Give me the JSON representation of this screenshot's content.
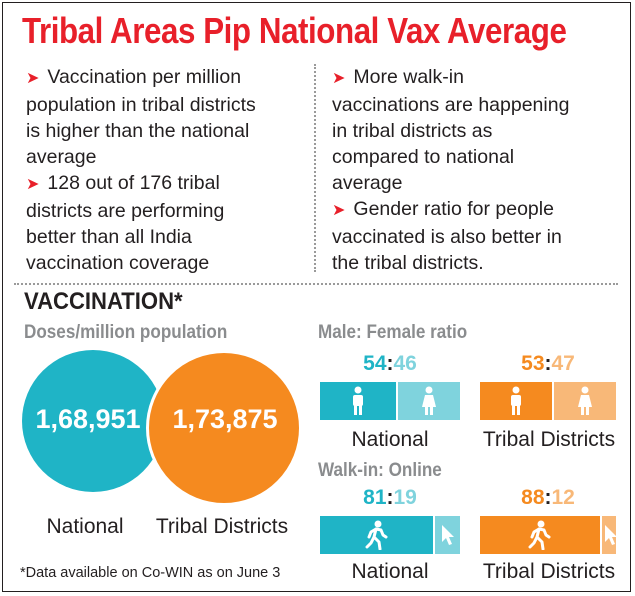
{
  "title": "Tribal Areas Pip National Vax Average",
  "left_bullets": [
    {
      "lines": [
        "Vaccination per million",
        "population in tribal districts",
        "is higher than the national",
        "average"
      ]
    },
    {
      "lines": [
        "128 out of 176 tribal",
        "districts are performing",
        "better than all India",
        "vaccination coverage"
      ]
    }
  ],
  "right_bullets": [
    {
      "lines": [
        "More walk-in",
        "vaccinations are happening",
        "in tribal districts as",
        "compared to national",
        "average"
      ]
    },
    {
      "lines": [
        "Gender ratio for people",
        "vaccinated is also better in",
        "the tribal districts."
      ]
    }
  ],
  "section_title": "VACCINATION*",
  "doses": {
    "subtitle": "Doses/million population",
    "national": {
      "value": "1,68,951",
      "label": "National",
      "color": "#1fb4c6"
    },
    "tribal": {
      "value": "1,73,875",
      "label": "Tribal Districts",
      "color": "#f58a1f"
    }
  },
  "gender": {
    "subtitle": "Male: Female ratio",
    "national": {
      "male": "54",
      "sep": ":",
      "female": "46",
      "label": "National",
      "male_share": 0.54
    },
    "tribal": {
      "male": "53",
      "sep": ":",
      "female": "47",
      "label": "Tribal Districts",
      "male_share": 0.53
    }
  },
  "walkin": {
    "subtitle": "Walk-in: Online",
    "national": {
      "walkin": "81",
      "sep": ":",
      "online": "19",
      "label": "National",
      "walkin_share": 0.81
    },
    "tribal": {
      "walkin": "88",
      "sep": ":",
      "online": "12",
      "label": "Tribal Districts",
      "walkin_share": 0.88
    }
  },
  "colors": {
    "red": "#e8202a",
    "teal": "#1fb4c6",
    "teal_light": "#7fd3dd",
    "orange": "#f58a1f",
    "orange_light": "#f8b878"
  },
  "icons": [
    "male-icon",
    "female-icon",
    "walking-person-icon",
    "cursor-icon"
  ],
  "footnote": "*Data available on Co-WIN as on June 3"
}
